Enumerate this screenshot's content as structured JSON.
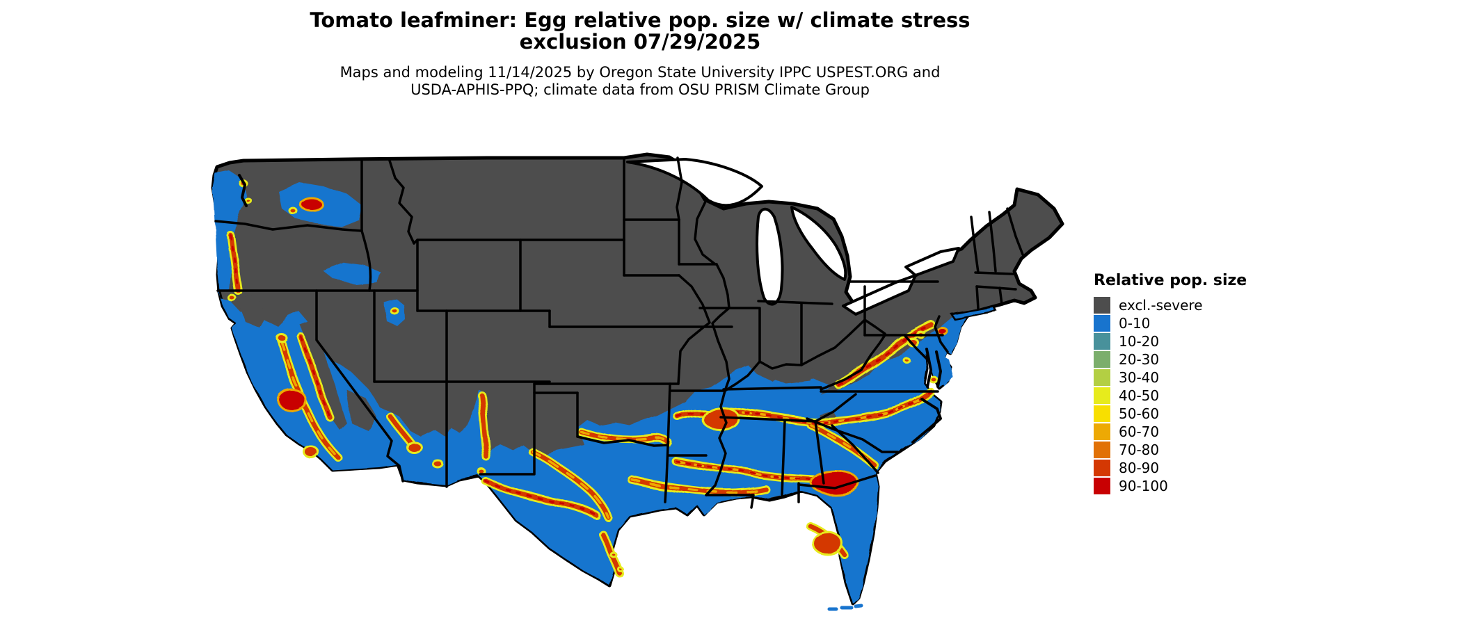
{
  "title": {
    "line1": "Tomato leafminer: Egg relative pop. size w/ climate stress",
    "line2": "exclusion 07/29/2025"
  },
  "subtitle": {
    "line1": "Maps and modeling 11/14/2025 by Oregon State University IPPC USPEST.ORG and",
    "line2": "USDA-APHIS-PPQ; climate data from OSU PRISM Climate Group"
  },
  "legend": {
    "title": "Relative pop. size",
    "items": [
      {
        "label": "excl.-severe",
        "color": "#4D4D4D"
      },
      {
        "label": "0-10",
        "color": "#1874CE"
      },
      {
        "label": "10-20",
        "color": "#48919B"
      },
      {
        "label": "20-30",
        "color": "#7BAE6C"
      },
      {
        "label": "30-40",
        "color": "#B3CF43"
      },
      {
        "label": "40-50",
        "color": "#E7EB1C"
      },
      {
        "label": "50-60",
        "color": "#F8DF00"
      },
      {
        "label": "60-70",
        "color": "#EDA904"
      },
      {
        "label": "70-80",
        "color": "#E17106"
      },
      {
        "label": "80-90",
        "color": "#D43803"
      },
      {
        "label": "90-100",
        "color": "#C80002"
      }
    ]
  },
  "map": {
    "colors": {
      "excluded": "#4D4D4D",
      "suitable": "#1874CE",
      "water": "#FFFFFF",
      "border": "#000000",
      "band_low": "#E7EB1C",
      "band_mid": "#EDA904",
      "band_high": "#D43803",
      "band_max": "#C80002"
    }
  }
}
